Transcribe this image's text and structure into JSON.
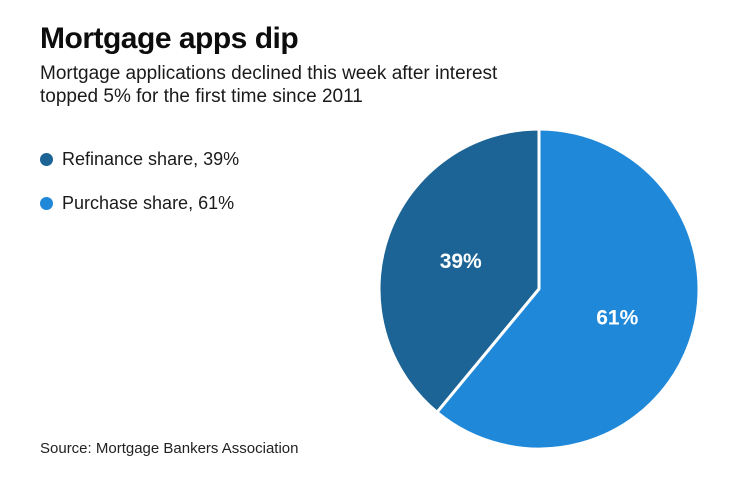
{
  "header": {
    "title": "Mortgage apps dip",
    "subtitle_lines": [
      "Mortgage applications declined this week after interest",
      "topped 5% for the first time since 2011"
    ]
  },
  "legend": {
    "items": [
      {
        "label": "Refinance share, 39%",
        "color": "#1c6396"
      },
      {
        "label": "Purchase share, 61%",
        "color": "#2088d8"
      }
    ]
  },
  "chart_data": {
    "type": "pie",
    "title": "Mortgage apps dip",
    "subtitle": "Mortgage applications declined this week after interest topped 5% for the first time since 2011",
    "slices": [
      {
        "label": "Refinance share",
        "value": 39,
        "display": "39%",
        "color": "#1c6396"
      },
      {
        "label": "Purchase share",
        "value": 61,
        "display": "61%",
        "color": "#2088d8"
      }
    ],
    "start_angle_deg": 0,
    "direction": "counterclockwise",
    "slice_label_color": "#ffffff",
    "slice_divider_color": "#ffffff",
    "legend_position": "left",
    "source": "Source: Mortgage Bankers Association"
  },
  "source": {
    "text": "Source: Mortgage Bankers Association"
  }
}
